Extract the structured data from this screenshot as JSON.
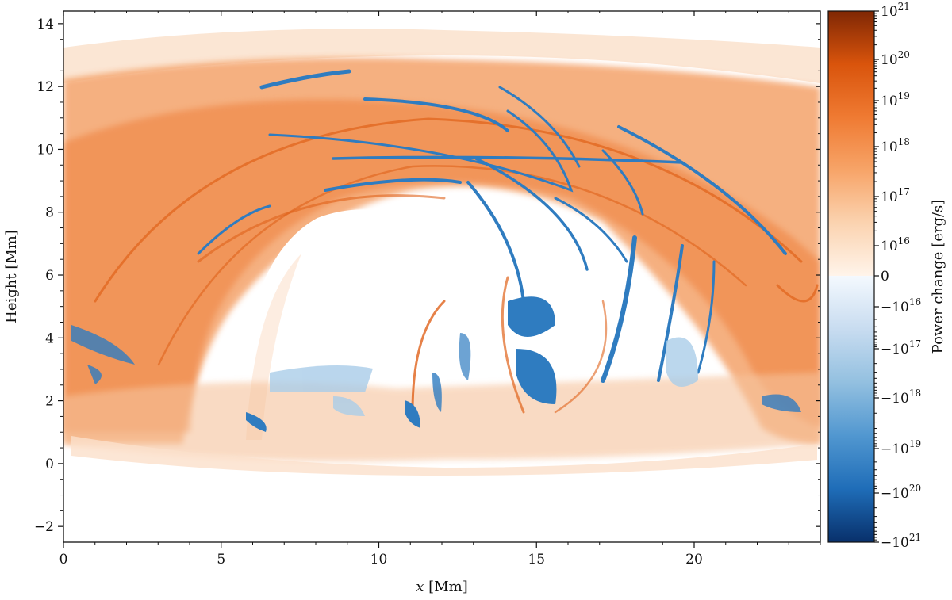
{
  "chart_data": {
    "type": "heatmap",
    "title": "",
    "xlabel_var": "x",
    "xlabel_unit": "[Mm]",
    "ylabel": "Height [Mm]",
    "xlim": [
      0,
      24
    ],
    "ylim": [
      -2.5,
      14.4
    ],
    "x_ticks": [
      0,
      5,
      10,
      15,
      20
    ],
    "y_ticks": [
      -2,
      0,
      2,
      4,
      6,
      8,
      10,
      12,
      14
    ],
    "grid": false,
    "colorbar": {
      "label": "Power change [erg/s]",
      "scale": "symmetric-log",
      "range": [
        "-10^21",
        "10^21"
      ],
      "positive_ticks": [
        {
          "base": "10",
          "exp": "21"
        },
        {
          "base": "10",
          "exp": "20"
        },
        {
          "base": "10",
          "exp": "19"
        },
        {
          "base": "10",
          "exp": "18"
        },
        {
          "base": "10",
          "exp": "17"
        },
        {
          "base": "10",
          "exp": "16"
        }
      ],
      "zero_tick": "0",
      "negative_ticks": [
        {
          "base": "−10",
          "exp": "16"
        },
        {
          "base": "−10",
          "exp": "17"
        },
        {
          "base": "−10",
          "exp": "18"
        },
        {
          "base": "−10",
          "exp": "19"
        },
        {
          "base": "−10",
          "exp": "20"
        },
        {
          "base": "−10",
          "exp": "21"
        }
      ],
      "positive_color_stops": [
        "#fff4ea",
        "#fbd3b0",
        "#f7a468",
        "#ef7a32",
        "#d9540c",
        "#7f2704"
      ],
      "negative_color_stops": [
        "#f4f9fe",
        "#c8dcf0",
        "#93c0e0",
        "#5197d0",
        "#1f6db8",
        "#08306b"
      ]
    },
    "features": [
      {
        "name": "arcade",
        "sign": "positive",
        "description_values": {
          "top_height": 13.5,
          "x_range": [
            0,
            24
          ]
        }
      },
      {
        "name": "low-region-filaments",
        "sign": "mixed",
        "height_range": [
          0.5,
          6
        ]
      }
    ]
  }
}
